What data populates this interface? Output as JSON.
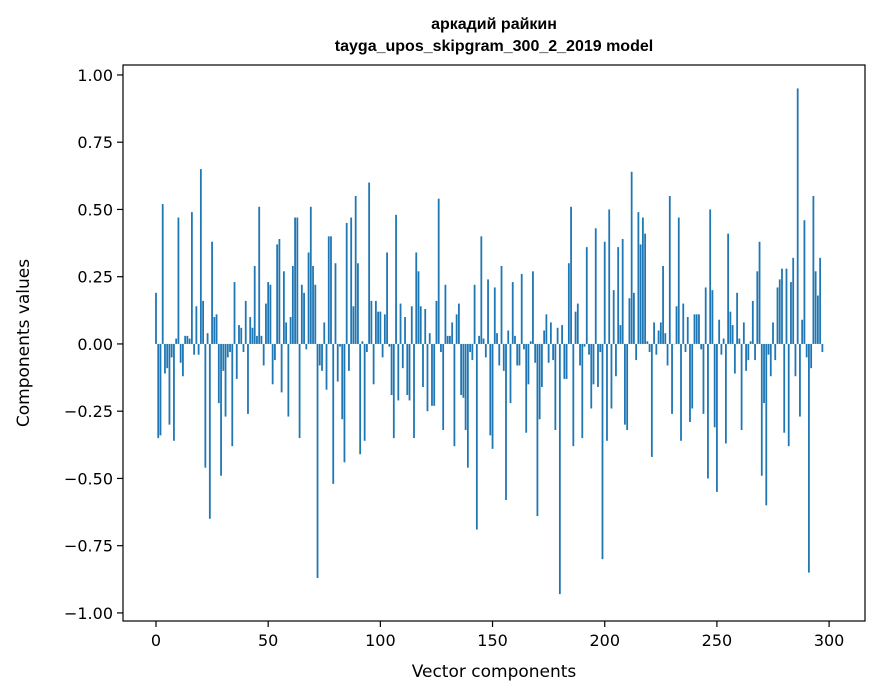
{
  "chart_data": {
    "type": "bar",
    "title_line1": "аркадий райкин",
    "title_line2": "tayga_upos_skipgram_300_2_2019 model",
    "xlabel": "Vector components",
    "ylabel": "Components values",
    "xlim": [
      -14.7,
      316
    ],
    "ylim": [
      -1.03,
      1.037
    ],
    "xticks": [
      0,
      50,
      100,
      150,
      200,
      250,
      300
    ],
    "xtick_labels": [
      "0",
      "50",
      "100",
      "150",
      "200",
      "250",
      "300"
    ],
    "yticks": [
      1.0,
      0.75,
      0.5,
      0.25,
      0.0,
      -0.25,
      -0.5,
      -0.75,
      -1.0
    ],
    "ytick_labels": [
      "1.00",
      "0.75",
      "0.50",
      "0.25",
      "0.00",
      "−0.25",
      "−0.50",
      "−0.75",
      "−1.00"
    ],
    "grid": false,
    "bar_color": "#1f77b4",
    "values": [
      0.19,
      -0.35,
      -0.34,
      0.52,
      -0.11,
      -0.09,
      -0.3,
      -0.05,
      -0.36,
      0.02,
      0.47,
      -0.07,
      -0.12,
      0.03,
      0.03,
      0.02,
      0.49,
      -0.04,
      0.14,
      -0.04,
      0.65,
      0.16,
      -0.46,
      0.04,
      -0.65,
      0.38,
      0.1,
      0.11,
      -0.22,
      -0.49,
      -0.1,
      -0.27,
      -0.05,
      -0.03,
      -0.38,
      0.23,
      -0.13,
      0.07,
      0.06,
      -0.03,
      0.16,
      -0.26,
      0.1,
      0.06,
      0.29,
      0.03,
      0.51,
      0.03,
      -0.08,
      0.15,
      0.23,
      0.22,
      -0.15,
      -0.06,
      0.37,
      0.39,
      -0.18,
      0.27,
      0.08,
      -0.27,
      0.1,
      0.29,
      0.47,
      0.47,
      -0.35,
      0.22,
      0.19,
      -0.02,
      0.34,
      0.51,
      0.29,
      0.22,
      -0.87,
      -0.08,
      -0.1,
      0.08,
      -0.17,
      0.4,
      0.4,
      -0.52,
      0.3,
      -0.14,
      -0.01,
      -0.28,
      -0.44,
      0.45,
      -0.1,
      0.47,
      0.14,
      0.55,
      0.3,
      -0.41,
      0.01,
      -0.36,
      -0.03,
      0.6,
      0.16,
      -0.15,
      0.16,
      0.12,
      0.12,
      -0.05,
      0.11,
      0.34,
      -0.01,
      -0.19,
      -0.35,
      0.48,
      -0.21,
      0.15,
      -0.09,
      0.1,
      -0.19,
      -0.21,
      0.14,
      -0.35,
      0.34,
      0.27,
      0.14,
      -0.16,
      0.13,
      -0.25,
      0.04,
      -0.23,
      -0.23,
      0.16,
      0.54,
      -0.03,
      -0.32,
      0.22,
      0.03,
      0.03,
      0.08,
      -0.38,
      0.11,
      0.15,
      -0.19,
      -0.2,
      -0.32,
      -0.46,
      -0.03,
      -0.06,
      0.22,
      -0.69,
      0.03,
      0.4,
      0.02,
      -0.05,
      0.24,
      -0.34,
      -0.39,
      0.21,
      0.04,
      -0.08,
      0.29,
      -0.1,
      -0.58,
      0.05,
      -0.22,
      0.23,
      0.03,
      -0.08,
      -0.08,
      0.26,
      -0.02,
      -0.33,
      -0.15,
      0.01,
      0.27,
      -0.07,
      -0.64,
      -0.28,
      -0.16,
      0.05,
      0.11,
      -0.07,
      0.08,
      -0.06,
      -0.32,
      0.06,
      -0.93,
      0.07,
      -0.13,
      -0.13,
      0.3,
      0.51,
      -0.38,
      0.12,
      0.15,
      -0.08,
      -0.35,
      -0.01,
      0.36,
      -0.04,
      -0.24,
      -0.15,
      0.43,
      -0.16,
      -0.03,
      -0.8,
      0.38,
      -0.36,
      0.5,
      -0.24,
      0.2,
      -0.12,
      0.36,
      0.07,
      0.39,
      -0.3,
      -0.32,
      0.17,
      0.64,
      0.19,
      -0.06,
      0.49,
      0.37,
      0.47,
      0.41,
      0.01,
      -0.03,
      -0.42,
      0.08,
      -0.04,
      0.05,
      0.08,
      0.29,
      0.04,
      -0.08,
      0.55,
      -0.26,
      0.0,
      0.14,
      0.47,
      -0.36,
      0.15,
      -0.03,
      0.1,
      -0.29,
      -0.24,
      0.11,
      0.11,
      0.11,
      -0.02,
      -0.26,
      0.21,
      -0.5,
      0.5,
      0.2,
      -0.31,
      -0.55,
      0.09,
      -0.04,
      0.02,
      -0.37,
      0.41,
      0.12,
      0.07,
      -0.11,
      0.19,
      0.02,
      -0.32,
      0.08,
      -0.1,
      -0.06,
      0.01,
      0.16,
      -0.06,
      0.27,
      0.38,
      -0.49,
      -0.22,
      -0.6,
      -0.04,
      -0.12,
      0.08,
      -0.06,
      0.21,
      0.24,
      0.28,
      -0.33,
      0.28,
      -0.38,
      0.23,
      0.32,
      -0.12,
      0.95,
      -0.27,
      0.09,
      0.46,
      -0.05,
      -0.85,
      -0.09,
      0.55,
      0.27,
      0.18,
      0.32,
      -0.03
    ]
  }
}
